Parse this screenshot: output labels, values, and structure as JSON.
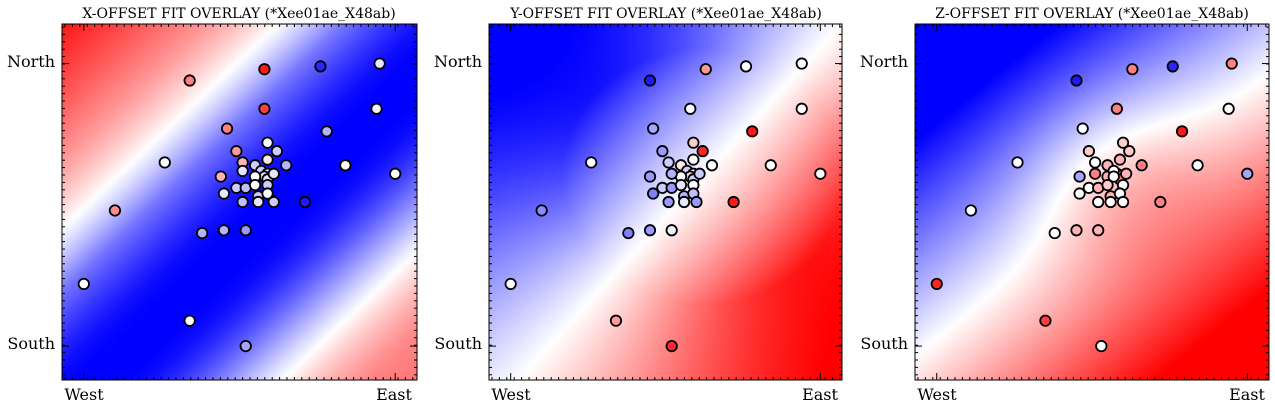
{
  "chart_data": [
    {
      "type": "heatmap",
      "title": "X-OFFSET FIT OVERLAY (*Xee01ae_X48ab)",
      "xticks": [
        "West",
        "East"
      ],
      "yticks": [
        "North",
        "South"
      ],
      "colormap": "bwr",
      "colors": {
        "low": "#0000ff",
        "mid": "#ffffff",
        "high": "#ff0000"
      },
      "xlim": [
        -0.07,
        1.07
      ],
      "ylim": [
        -0.12,
        1.14
      ],
      "grid": false,
      "field": {
        "kind": "band",
        "cx": 0.47,
        "cy": 0.32,
        "dx": 0.72,
        "dy": -0.69,
        "peak": -1.0,
        "width": 0.24,
        "falloff": 0.12,
        "slope": -0.55
      },
      "points": [
        {
          "x": 0.0,
          "y": 0.22,
          "v": 0.0
        },
        {
          "x": 0.1,
          "y": 0.48,
          "v": 0.45
        },
        {
          "x": 0.26,
          "y": 0.65,
          "v": 0.0
        },
        {
          "x": 0.34,
          "y": 0.94,
          "v": 0.5
        },
        {
          "x": 0.58,
          "y": 0.98,
          "v": 0.9
        },
        {
          "x": 0.76,
          "y": 0.99,
          "v": -0.85
        },
        {
          "x": 0.95,
          "y": 1.0,
          "v": -0.1
        },
        {
          "x": 0.58,
          "y": 0.84,
          "v": 0.75
        },
        {
          "x": 0.94,
          "y": 0.84,
          "v": -0.05
        },
        {
          "x": 0.46,
          "y": 0.77,
          "v": 0.5
        },
        {
          "x": 0.78,
          "y": 0.76,
          "v": -0.3
        },
        {
          "x": 0.49,
          "y": 0.69,
          "v": 0.4
        },
        {
          "x": 0.59,
          "y": 0.72,
          "v": 0.0
        },
        {
          "x": 0.62,
          "y": 0.69,
          "v": -0.2
        },
        {
          "x": 0.51,
          "y": 0.65,
          "v": 0.3
        },
        {
          "x": 0.55,
          "y": 0.64,
          "v": -0.2
        },
        {
          "x": 0.59,
          "y": 0.66,
          "v": 0.1
        },
        {
          "x": 0.57,
          "y": 0.62,
          "v": -0.2
        },
        {
          "x": 0.59,
          "y": 0.61,
          "v": 0.0
        },
        {
          "x": 0.58,
          "y": 0.6,
          "v": -0.15
        },
        {
          "x": 0.65,
          "y": 0.64,
          "v": -0.3
        },
        {
          "x": 0.51,
          "y": 0.62,
          "v": -0.1
        },
        {
          "x": 0.55,
          "y": 0.6,
          "v": 0.0
        },
        {
          "x": 0.59,
          "y": 0.59,
          "v": -0.1
        },
        {
          "x": 0.44,
          "y": 0.6,
          "v": 0.3
        },
        {
          "x": 0.49,
          "y": 0.56,
          "v": -0.2
        },
        {
          "x": 0.52,
          "y": 0.56,
          "v": -0.25
        },
        {
          "x": 0.55,
          "y": 0.57,
          "v": 0.0
        },
        {
          "x": 0.59,
          "y": 0.57,
          "v": -0.2
        },
        {
          "x": 0.61,
          "y": 0.61,
          "v": -0.1
        },
        {
          "x": 0.45,
          "y": 0.54,
          "v": -0.1
        },
        {
          "x": 0.56,
          "y": 0.53,
          "v": -0.2
        },
        {
          "x": 0.59,
          "y": 0.54,
          "v": 0.0
        },
        {
          "x": 0.61,
          "y": 0.51,
          "v": -0.2
        },
        {
          "x": 0.51,
          "y": 0.51,
          "v": -0.25
        },
        {
          "x": 0.56,
          "y": 0.51,
          "v": -0.1
        },
        {
          "x": 0.71,
          "y": 0.51,
          "v": -0.9
        },
        {
          "x": 0.84,
          "y": 0.64,
          "v": 0.0
        },
        {
          "x": 1.0,
          "y": 0.61,
          "v": 0.0
        },
        {
          "x": 0.38,
          "y": 0.4,
          "v": -0.3
        },
        {
          "x": 0.45,
          "y": 0.41,
          "v": -0.3
        },
        {
          "x": 0.52,
          "y": 0.41,
          "v": -0.4
        },
        {
          "x": 0.34,
          "y": 0.09,
          "v": 0.0
        },
        {
          "x": 0.52,
          "y": 0.0,
          "v": -0.35
        }
      ]
    },
    {
      "type": "heatmap",
      "title": "Y-OFFSET FIT OVERLAY (*Xee01ae_X48ab)",
      "xticks": [
        "West",
        "East"
      ],
      "yticks": [
        "North",
        "South"
      ],
      "colormap": "bwr",
      "colors": {
        "low": "#0000ff",
        "mid": "#ffffff",
        "high": "#ff0000"
      },
      "xlim": [
        -0.07,
        1.07
      ],
      "ylim": [
        -0.12,
        1.14
      ],
      "grid": false,
      "field": {
        "kind": "saddle",
        "cx": 0.62,
        "cy": 0.6,
        "bx": 0.62,
        "by": 0.35,
        "cross": 0.35,
        "curv": 0.45,
        "offset": 0.0
      },
      "points": [
        {
          "x": 0.0,
          "y": 0.22,
          "v": 0.0
        },
        {
          "x": 0.1,
          "y": 0.48,
          "v": -0.45
        },
        {
          "x": 0.26,
          "y": 0.65,
          "v": 0.0
        },
        {
          "x": 0.45,
          "y": 0.94,
          "v": -0.9
        },
        {
          "x": 0.63,
          "y": 0.98,
          "v": 0.4
        },
        {
          "x": 0.76,
          "y": 0.99,
          "v": 0.0
        },
        {
          "x": 0.94,
          "y": 1.0,
          "v": 0.0
        },
        {
          "x": 0.58,
          "y": 0.84,
          "v": 0.0
        },
        {
          "x": 0.94,
          "y": 0.84,
          "v": 0.0
        },
        {
          "x": 0.46,
          "y": 0.77,
          "v": -0.35
        },
        {
          "x": 0.78,
          "y": 0.76,
          "v": 0.9
        },
        {
          "x": 0.49,
          "y": 0.69,
          "v": -0.4
        },
        {
          "x": 0.59,
          "y": 0.72,
          "v": 0.2
        },
        {
          "x": 0.62,
          "y": 0.69,
          "v": 0.85
        },
        {
          "x": 0.51,
          "y": 0.65,
          "v": -0.2
        },
        {
          "x": 0.55,
          "y": 0.64,
          "v": 0.1
        },
        {
          "x": 0.59,
          "y": 0.66,
          "v": 0.0
        },
        {
          "x": 0.57,
          "y": 0.62,
          "v": -0.2
        },
        {
          "x": 0.59,
          "y": 0.61,
          "v": 0.0
        },
        {
          "x": 0.58,
          "y": 0.6,
          "v": 0.2
        },
        {
          "x": 0.65,
          "y": 0.64,
          "v": 0.0
        },
        {
          "x": 0.45,
          "y": 0.6,
          "v": -0.4
        },
        {
          "x": 0.55,
          "y": 0.6,
          "v": 0.0
        },
        {
          "x": 0.59,
          "y": 0.59,
          "v": -0.2
        },
        {
          "x": 0.52,
          "y": 0.61,
          "v": -0.3
        },
        {
          "x": 0.49,
          "y": 0.56,
          "v": -0.2
        },
        {
          "x": 0.52,
          "y": 0.56,
          "v": -0.4
        },
        {
          "x": 0.55,
          "y": 0.57,
          "v": -0.1
        },
        {
          "x": 0.59,
          "y": 0.57,
          "v": 0.0
        },
        {
          "x": 0.61,
          "y": 0.61,
          "v": -0.2
        },
        {
          "x": 0.46,
          "y": 0.54,
          "v": -0.5
        },
        {
          "x": 0.56,
          "y": 0.53,
          "v": -0.3
        },
        {
          "x": 0.59,
          "y": 0.54,
          "v": -0.25
        },
        {
          "x": 0.51,
          "y": 0.51,
          "v": -0.4
        },
        {
          "x": 0.56,
          "y": 0.51,
          "v": -0.1
        },
        {
          "x": 0.6,
          "y": 0.51,
          "v": -0.4
        },
        {
          "x": 0.72,
          "y": 0.51,
          "v": 0.9
        },
        {
          "x": 0.84,
          "y": 0.64,
          "v": 0.0
        },
        {
          "x": 1.0,
          "y": 0.61,
          "v": 0.0
        },
        {
          "x": 0.38,
          "y": 0.4,
          "v": -0.5
        },
        {
          "x": 0.45,
          "y": 0.41,
          "v": -0.4
        },
        {
          "x": 0.52,
          "y": 0.41,
          "v": -0.05
        },
        {
          "x": 0.34,
          "y": 0.09,
          "v": 0.4
        },
        {
          "x": 0.52,
          "y": 0.0,
          "v": 0.85
        }
      ]
    },
    {
      "type": "heatmap",
      "title": "Z-OFFSET FIT OVERLAY (*Xee01ae_X48ab)",
      "xticks": [
        "West",
        "East"
      ],
      "yticks": [
        "North",
        "South"
      ],
      "colormap": "bwr",
      "colors": {
        "low": "#0000ff",
        "mid": "#ffffff",
        "high": "#ff0000"
      },
      "xlim": [
        -0.07,
        1.07
      ],
      "ylim": [
        -0.12,
        1.14
      ],
      "grid": false,
      "field": {
        "kind": "linear",
        "ax": -1.35,
        "ay": 1.55,
        "c": -0.05,
        "bump": 0.3,
        "bx": 0.58,
        "by": 0.6,
        "bs": 0.22
      },
      "points": [
        {
          "x": 0.0,
          "y": 0.22,
          "v": 0.85
        },
        {
          "x": 0.11,
          "y": 0.48,
          "v": 0.0
        },
        {
          "x": 0.26,
          "y": 0.65,
          "v": 0.0
        },
        {
          "x": 0.45,
          "y": 0.94,
          "v": -0.9
        },
        {
          "x": 0.63,
          "y": 0.98,
          "v": 0.5
        },
        {
          "x": 0.76,
          "y": 0.99,
          "v": -0.85
        },
        {
          "x": 0.95,
          "y": 1.0,
          "v": 0.5
        },
        {
          "x": 0.58,
          "y": 0.84,
          "v": 0.5
        },
        {
          "x": 0.94,
          "y": 0.84,
          "v": 0.0
        },
        {
          "x": 0.47,
          "y": 0.77,
          "v": 0.0
        },
        {
          "x": 0.79,
          "y": 0.76,
          "v": 0.9
        },
        {
          "x": 0.49,
          "y": 0.69,
          "v": 0.2
        },
        {
          "x": 0.6,
          "y": 0.72,
          "v": 0.2
        },
        {
          "x": 0.62,
          "y": 0.69,
          "v": 0.2
        },
        {
          "x": 0.51,
          "y": 0.65,
          "v": 0.0
        },
        {
          "x": 0.55,
          "y": 0.64,
          "v": 0.3
        },
        {
          "x": 0.59,
          "y": 0.66,
          "v": 0.3
        },
        {
          "x": 0.66,
          "y": 0.64,
          "v": 0.5
        },
        {
          "x": 0.51,
          "y": 0.61,
          "v": 0.5
        },
        {
          "x": 0.55,
          "y": 0.6,
          "v": 0.3
        },
        {
          "x": 0.58,
          "y": 0.61,
          "v": 0.0
        },
        {
          "x": 0.57,
          "y": 0.62,
          "v": 0.0
        },
        {
          "x": 0.59,
          "y": 0.59,
          "v": 0.5
        },
        {
          "x": 0.57,
          "y": 0.6,
          "v": 0.0
        },
        {
          "x": 0.46,
          "y": 0.6,
          "v": -0.35
        },
        {
          "x": 0.49,
          "y": 0.56,
          "v": 0.0
        },
        {
          "x": 0.52,
          "y": 0.56,
          "v": 0.3
        },
        {
          "x": 0.55,
          "y": 0.57,
          "v": 0.2
        },
        {
          "x": 0.6,
          "y": 0.57,
          "v": 0.0
        },
        {
          "x": 0.61,
          "y": 0.61,
          "v": 0.3
        },
        {
          "x": 0.46,
          "y": 0.54,
          "v": 0.0
        },
        {
          "x": 0.56,
          "y": 0.53,
          "v": 0.3
        },
        {
          "x": 0.59,
          "y": 0.54,
          "v": 0.0
        },
        {
          "x": 0.52,
          "y": 0.51,
          "v": 0.0
        },
        {
          "x": 0.56,
          "y": 0.51,
          "v": 0.0
        },
        {
          "x": 0.6,
          "y": 0.51,
          "v": 0.0
        },
        {
          "x": 0.72,
          "y": 0.51,
          "v": 0.5
        },
        {
          "x": 0.84,
          "y": 0.64,
          "v": 0.0
        },
        {
          "x": 1.0,
          "y": 0.61,
          "v": -0.35
        },
        {
          "x": 0.38,
          "y": 0.4,
          "v": 0.0
        },
        {
          "x": 0.45,
          "y": 0.41,
          "v": 0.3
        },
        {
          "x": 0.52,
          "y": 0.41,
          "v": 0.3
        },
        {
          "x": 0.35,
          "y": 0.09,
          "v": 0.75
        },
        {
          "x": 0.53,
          "y": 0.0,
          "v": 0.0
        }
      ]
    }
  ]
}
